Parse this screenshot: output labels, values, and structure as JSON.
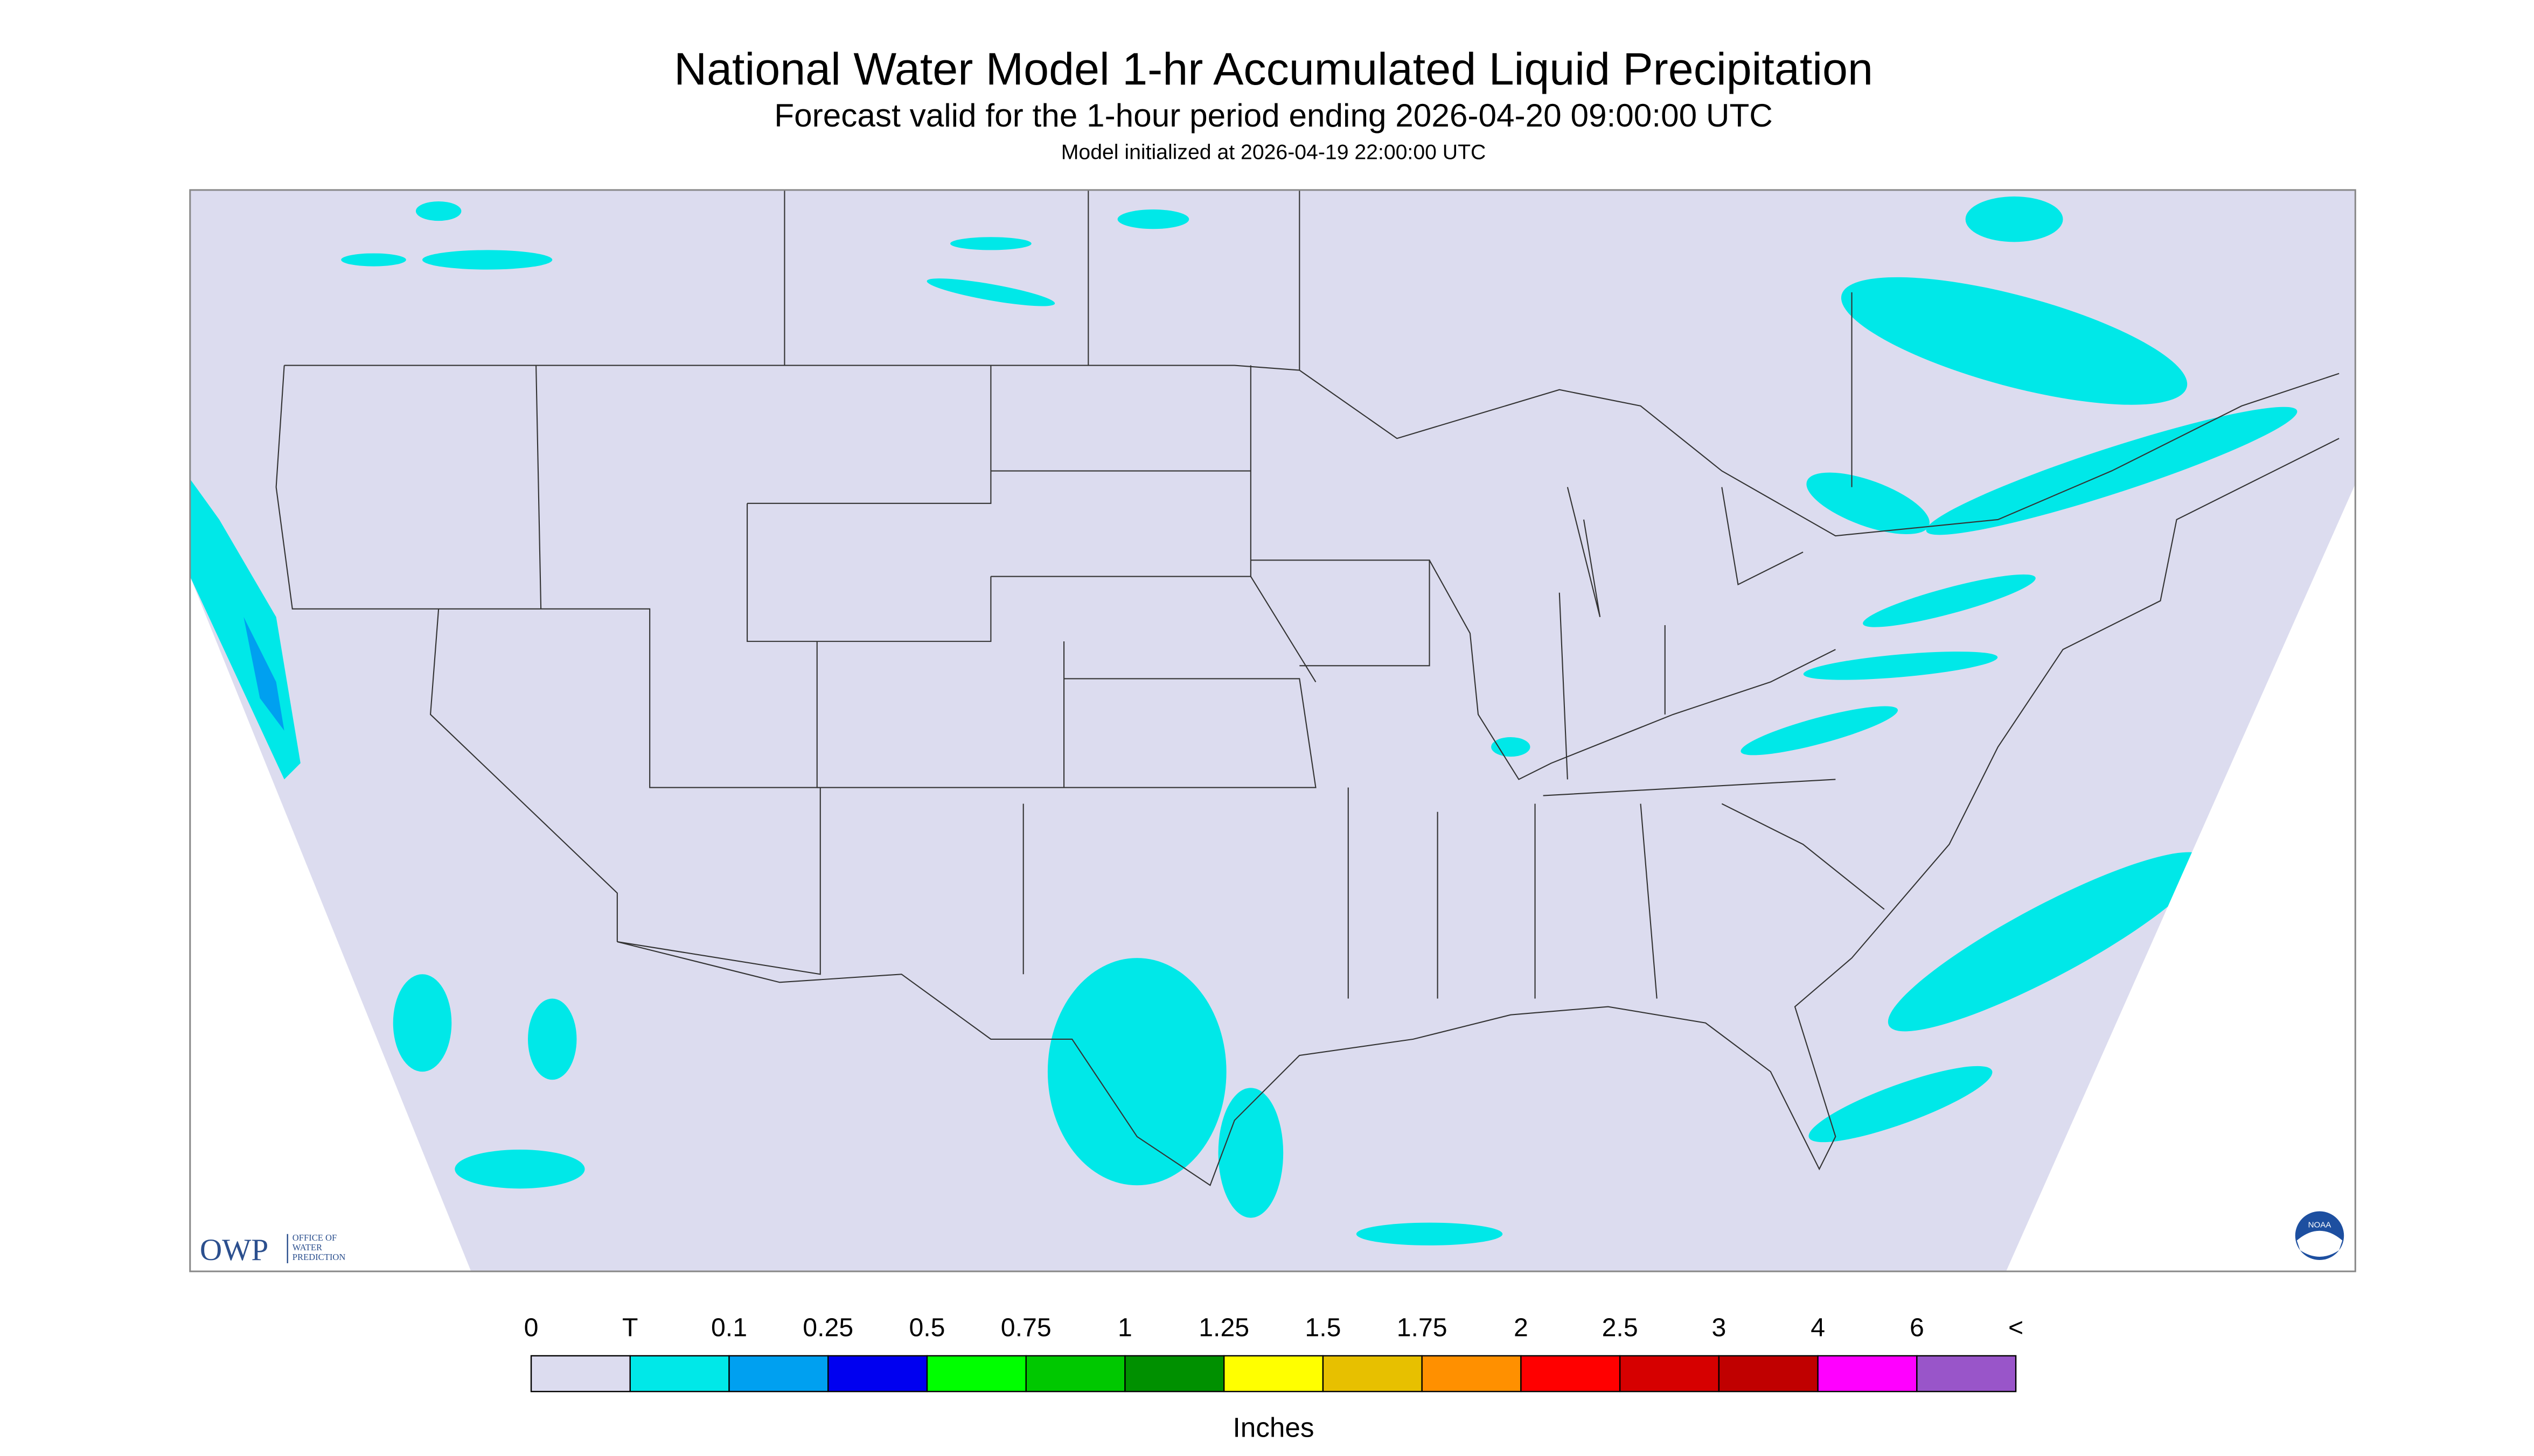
{
  "header": {
    "title": "National Water Model 1-hr Accumulated Liquid Precipitation",
    "subtitle": "Forecast valid for the 1-hour period ending 2026-04-20 09:00:00 UTC",
    "initialized": "Model initialized at 2026-04-19 22:00:00 UTC"
  },
  "legend": {
    "labels": [
      "0",
      "T",
      "0.1",
      "0.25",
      "0.5",
      "0.75",
      "1",
      "1.25",
      "1.5",
      "1.75",
      "2",
      "2.5",
      "3",
      "4",
      "6",
      "<"
    ],
    "colors": [
      "#dcdcef",
      "#00e8e8",
      "#00a0f0",
      "#0000f0",
      "#00ff00",
      "#00c800",
      "#009000",
      "#ffff00",
      "#e7c000",
      "#ff9000",
      "#ff0000",
      "#d60000",
      "#c00000",
      "#ff00ff",
      "#9955c9"
    ],
    "unit": "Inches"
  },
  "logo": {
    "owp": "OWP",
    "name": [
      "OFFICE OF",
      "WATER",
      "PREDICTION"
    ],
    "noaa": "NOAA"
  }
}
